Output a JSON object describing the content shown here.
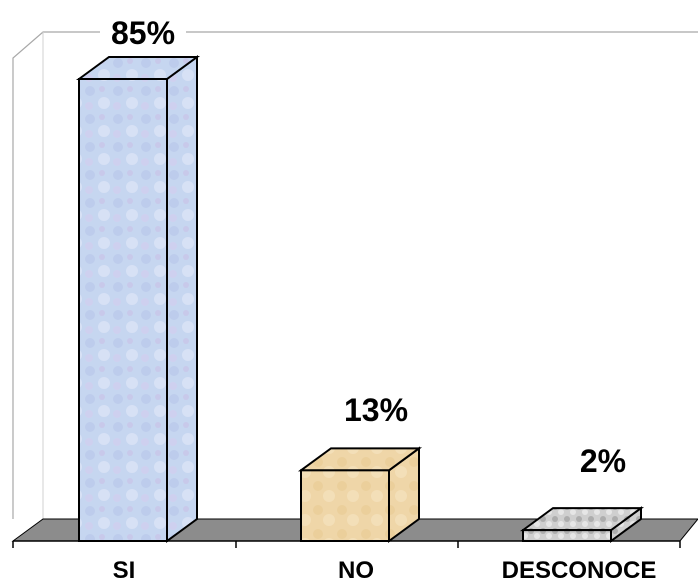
{
  "chart_data": {
    "type": "bar",
    "categories": [
      "SI",
      "NO",
      "DESCONOCE"
    ],
    "values": [
      85,
      13,
      2
    ],
    "value_labels": [
      "85%",
      "13%",
      "2%"
    ],
    "value_suffix": "%",
    "ylim": [
      0,
      85
    ],
    "grid": false,
    "legend": "none",
    "style": "3d",
    "colors": {
      "SI": "#c8d8f0",
      "NO": "#f0d9ae",
      "DESCONOCE": "#d4d4d4",
      "floor": "#8c8c8c",
      "wall_stroke": "#a8a8a8"
    }
  }
}
